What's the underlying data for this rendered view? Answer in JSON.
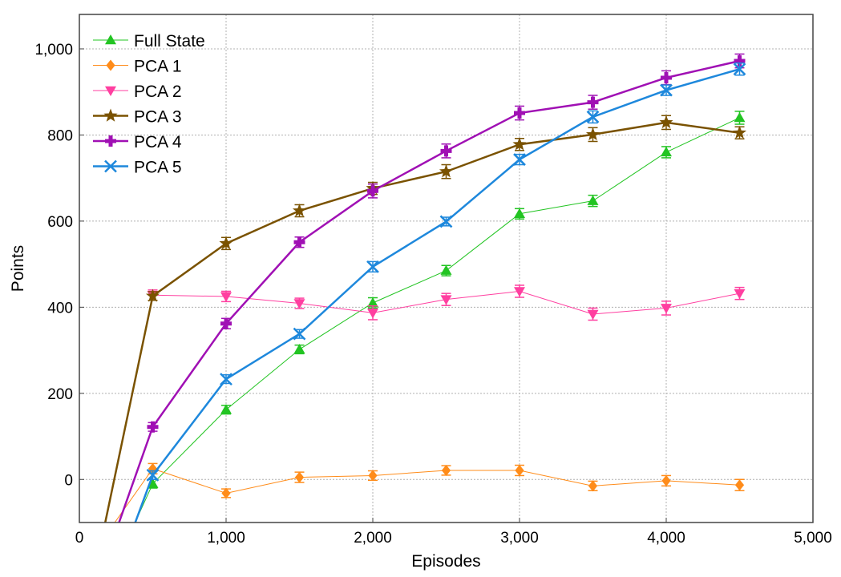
{
  "chart_data": {
    "type": "line",
    "xlabel": "Episodes",
    "ylabel": "Points",
    "xlim": [
      0,
      5000
    ],
    "ylim": [
      -100,
      1080
    ],
    "xticks": [
      0,
      1000,
      2000,
      3000,
      4000,
      5000
    ],
    "xtick_labels": [
      "0",
      "1,000",
      "2,000",
      "3,000",
      "4,000",
      "5,000"
    ],
    "yticks": [
      0,
      200,
      400,
      600,
      800,
      1000
    ],
    "ytick_labels": [
      "0",
      "200",
      "400",
      "600",
      "800",
      "1,000"
    ],
    "grid": true,
    "legend_position": "top-left",
    "series": [
      {
        "name": "Full State",
        "color": "#22c422",
        "marker": "triangle-up",
        "line_width": 1,
        "x": [
          300,
          500,
          1000,
          1500,
          2000,
          2500,
          3000,
          3500,
          4000,
          4500
        ],
        "values": [
          -160,
          -10,
          162,
          302,
          410,
          485,
          617,
          647,
          760,
          840
        ],
        "errors": [
          0,
          10,
          10,
          10,
          12,
          12,
          12,
          13,
          13,
          15
        ]
      },
      {
        "name": "PCA 1",
        "color": "#ff8c1a",
        "marker": "diamond",
        "line_width": 1,
        "x": [
          200,
          500,
          1000,
          1500,
          2000,
          2500,
          3000,
          3500,
          4000,
          4500
        ],
        "values": [
          -120,
          25,
          -32,
          5,
          9,
          21,
          21,
          -15,
          -3,
          -13
        ],
        "errors": [
          0,
          12,
          10,
          12,
          11,
          11,
          12,
          11,
          12,
          13
        ]
      },
      {
        "name": "PCA 2",
        "color": "#ff3fa0",
        "marker": "triangle-down",
        "line_width": 1,
        "x": [
          170,
          500,
          1000,
          1500,
          2000,
          2500,
          3000,
          3500,
          4000,
          4500
        ],
        "values": [
          -110,
          428,
          425,
          409,
          387,
          418,
          437,
          384,
          398,
          432
        ],
        "errors": [
          0,
          12,
          12,
          12,
          16,
          14,
          14,
          14,
          16,
          14
        ]
      },
      {
        "name": "PCA 3",
        "color": "#7a5200",
        "marker": "star",
        "line_width": 2.5,
        "x": [
          170,
          500,
          1000,
          1500,
          2000,
          2500,
          3000,
          3500,
          4000,
          4500
        ],
        "values": [
          -110,
          426,
          548,
          624,
          676,
          715,
          778,
          801,
          829,
          805
        ],
        "errors": [
          0,
          10,
          14,
          14,
          14,
          16,
          14,
          16,
          16,
          14
        ]
      },
      {
        "name": "PCA 4",
        "color": "#a010b4",
        "marker": "square-cross",
        "line_width": 2.5,
        "x": [
          260,
          500,
          1000,
          1500,
          2000,
          2500,
          3000,
          3500,
          4000,
          4500
        ],
        "values": [
          -110,
          122,
          362,
          551,
          670,
          763,
          851,
          876,
          933,
          972
        ],
        "errors": [
          0,
          10,
          12,
          12,
          16,
          16,
          16,
          16,
          16,
          16
        ]
      },
      {
        "name": "PCA 5",
        "color": "#1e88dc",
        "marker": "x",
        "line_width": 2.5,
        "x": [
          370,
          500,
          1000,
          1500,
          2000,
          2500,
          3000,
          3500,
          4000,
          4500
        ],
        "values": [
          -110,
          10,
          233,
          338,
          494,
          599,
          743,
          842,
          904,
          953
        ],
        "errors": [
          0,
          10,
          10,
          10,
          12,
          10,
          12,
          14,
          12,
          14
        ]
      }
    ]
  }
}
